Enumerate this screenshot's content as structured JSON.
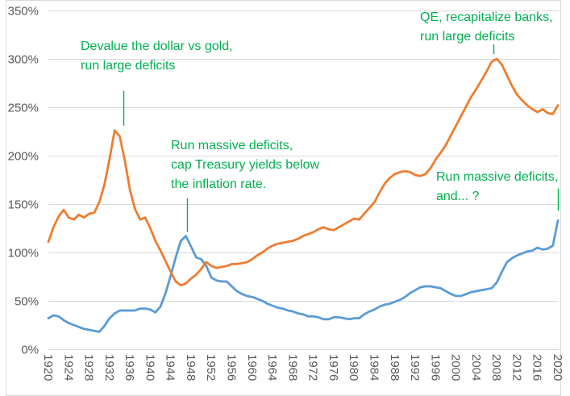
{
  "chart_data": {
    "type": "line",
    "title": "",
    "xlabel": "",
    "ylabel": "",
    "x_range": [
      1920,
      2020
    ],
    "x_step": 1,
    "y_max": 350,
    "grid": "horizontal",
    "legend": "none",
    "colors": {
      "orange": "#ED7D31",
      "blue": "#5B9BD5",
      "green": "#00B050",
      "axis_text": "#595959",
      "gridline": "#D9D9D9",
      "border": "#D9D9D9"
    },
    "y_ticks": [
      {
        "label": "0%",
        "value": 0
      },
      {
        "label": "50%",
        "value": 50
      },
      {
        "label": "100%",
        "value": 100
      },
      {
        "label": "150%",
        "value": 150
      },
      {
        "label": "200%",
        "value": 200
      },
      {
        "label": "250%",
        "value": 250
      },
      {
        "label": "300%",
        "value": 300
      },
      {
        "label": "350%",
        "value": 350
      }
    ],
    "x_tick_labels": [
      "1920",
      "1924",
      "1928",
      "1932",
      "1936",
      "1940",
      "1944",
      "1948",
      "1952",
      "1956",
      "1960",
      "1964",
      "1968",
      "1972",
      "1976",
      "1980",
      "1984",
      "1988",
      "1992",
      "1996",
      "2000",
      "2004",
      "2008",
      "2012",
      "2016",
      "2020"
    ],
    "series": [
      {
        "name": "blue-line",
        "color_key": "blue",
        "values": [
          32,
          35,
          34,
          30,
          27,
          25,
          23,
          21,
          20,
          19,
          18,
          24,
          32,
          37,
          40,
          40,
          40,
          40,
          42,
          42,
          41,
          38,
          44,
          58,
          76,
          95,
          112,
          117,
          106,
          95,
          93,
          86,
          74,
          71,
          70,
          70,
          65,
          60,
          57,
          55,
          54,
          52,
          50,
          47,
          45,
          43,
          42,
          40,
          39,
          37,
          36,
          34,
          34,
          33,
          31,
          31,
          33,
          33,
          32,
          31,
          32,
          32,
          36,
          39,
          41,
          44,
          46,
          47,
          49,
          51,
          54,
          58,
          61,
          64,
          65,
          65,
          64,
          63,
          60,
          57,
          55,
          55,
          57,
          59,
          60,
          61,
          62,
          63,
          69,
          80,
          90,
          94,
          97,
          99,
          101,
          102,
          105,
          103,
          104,
          107,
          133
        ]
      },
      {
        "name": "orange-line",
        "color_key": "orange",
        "values": [
          111,
          126,
          137,
          144,
          136,
          134,
          139,
          136,
          140,
          141,
          152,
          170,
          196,
          226,
          220,
          195,
          165,
          145,
          134,
          136,
          125,
          112,
          102,
          91,
          80,
          70,
          66,
          68,
          73,
          77,
          83,
          90,
          86,
          84,
          85,
          86,
          88,
          88,
          89,
          90,
          93,
          97,
          100,
          104,
          107,
          109,
          110,
          111,
          112,
          114,
          117,
          119,
          121,
          124,
          126,
          124,
          123,
          126,
          129,
          132,
          135,
          134,
          140,
          146,
          152,
          162,
          171,
          177,
          181,
          183,
          184,
          183,
          180,
          179,
          181,
          187,
          196,
          203,
          211,
          221,
          231,
          241,
          251,
          261,
          269,
          278,
          287,
          297,
          300,
          294,
          283,
          272,
          263,
          257,
          252,
          248,
          245,
          248,
          244,
          243,
          252
        ]
      }
    ],
    "annotations": [
      {
        "id": "devalue-dollar",
        "lines": [
          "Devalue the dollar vs gold,",
          "run large deficits"
        ],
        "callout": {
          "year": 1934.7,
          "pct_from": 267,
          "pct_to": 231
        }
      },
      {
        "id": "cap-treasury-yields",
        "lines": [
          "Run massive deficits,",
          "cap Treasury yields below",
          "the inflation rate."
        ],
        "callout": {
          "year": 1947.2,
          "pct_from": 156,
          "pct_to": 121
        }
      },
      {
        "id": "qe-recapitalize",
        "lines": [
          "QE, recapitalize banks,",
          "run large deficits"
        ],
        "callout": {
          "year": 2007.3,
          "pct_from": 315,
          "pct_to": 305
        }
      },
      {
        "id": "deficits-2020",
        "lines": [
          "Run massive deficits,",
          "and... ?"
        ],
        "callout": {
          "year": 2020,
          "pct_from": 166,
          "pct_to": 143
        }
      }
    ]
  }
}
